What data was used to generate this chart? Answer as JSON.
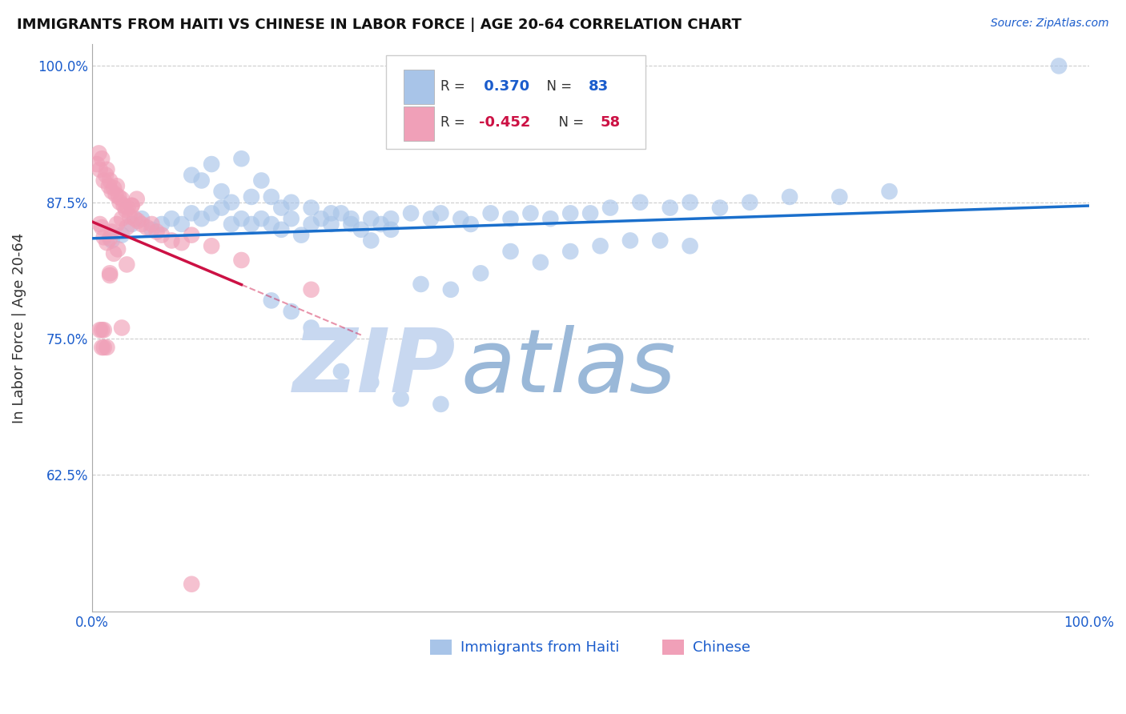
{
  "title": "IMMIGRANTS FROM HAITI VS CHINESE IN LABOR FORCE | AGE 20-64 CORRELATION CHART",
  "source": "Source: ZipAtlas.com",
  "ylabel": "In Labor Force | Age 20-64",
  "xlim": [
    0.0,
    1.0
  ],
  "ylim": [
    0.5,
    1.02
  ],
  "xtick_positions": [
    0.0,
    0.2,
    0.4,
    0.6,
    0.8,
    1.0
  ],
  "xticklabels": [
    "0.0%",
    "",
    "",
    "",
    "",
    "100.0%"
  ],
  "ytick_positions": [
    0.625,
    0.75,
    0.875,
    1.0
  ],
  "ytick_labels": [
    "62.5%",
    "75.0%",
    "87.5%",
    "100.0%"
  ],
  "haiti_color": "#a8c4e8",
  "haiti_line_color": "#1a6fcc",
  "chinese_color": "#f0a0b8",
  "chinese_line_color": "#cc1144",
  "watermark_zip_color": "#c8d8f0",
  "watermark_atlas_color": "#9ab8d8",
  "haiti_scatter_x": [
    0.02,
    0.03,
    0.04,
    0.05,
    0.06,
    0.07,
    0.08,
    0.09,
    0.1,
    0.11,
    0.12,
    0.13,
    0.14,
    0.15,
    0.16,
    0.17,
    0.18,
    0.19,
    0.2,
    0.21,
    0.22,
    0.23,
    0.24,
    0.25,
    0.26,
    0.27,
    0.28,
    0.29,
    0.3,
    0.32,
    0.34,
    0.35,
    0.37,
    0.38,
    0.4,
    0.42,
    0.44,
    0.46,
    0.48,
    0.5,
    0.52,
    0.55,
    0.58,
    0.6,
    0.63,
    0.66,
    0.7,
    0.75,
    0.8,
    0.97,
    0.1,
    0.11,
    0.12,
    0.13,
    0.14,
    0.15,
    0.16,
    0.17,
    0.18,
    0.19,
    0.2,
    0.22,
    0.24,
    0.26,
    0.28,
    0.3,
    0.33,
    0.36,
    0.39,
    0.42,
    0.45,
    0.48,
    0.51,
    0.54,
    0.57,
    0.6,
    0.18,
    0.2,
    0.22,
    0.25,
    0.28,
    0.31,
    0.35
  ],
  "haiti_scatter_y": [
    0.84,
    0.845,
    0.855,
    0.86,
    0.85,
    0.855,
    0.86,
    0.855,
    0.865,
    0.86,
    0.865,
    0.87,
    0.855,
    0.86,
    0.855,
    0.86,
    0.855,
    0.85,
    0.86,
    0.845,
    0.855,
    0.86,
    0.855,
    0.865,
    0.855,
    0.85,
    0.86,
    0.855,
    0.86,
    0.865,
    0.86,
    0.865,
    0.86,
    0.855,
    0.865,
    0.86,
    0.865,
    0.86,
    0.865,
    0.865,
    0.87,
    0.875,
    0.87,
    0.875,
    0.87,
    0.875,
    0.88,
    0.88,
    0.885,
    1.0,
    0.9,
    0.895,
    0.91,
    0.885,
    0.875,
    0.915,
    0.88,
    0.895,
    0.88,
    0.87,
    0.875,
    0.87,
    0.865,
    0.86,
    0.84,
    0.85,
    0.8,
    0.795,
    0.81,
    0.83,
    0.82,
    0.83,
    0.835,
    0.84,
    0.84,
    0.835,
    0.785,
    0.775,
    0.76,
    0.72,
    0.71,
    0.695,
    0.69
  ],
  "chinese_scatter_x": [
    0.005,
    0.007,
    0.008,
    0.01,
    0.012,
    0.014,
    0.015,
    0.017,
    0.018,
    0.02,
    0.022,
    0.024,
    0.025,
    0.027,
    0.028,
    0.03,
    0.032,
    0.034,
    0.036,
    0.038,
    0.04,
    0.043,
    0.046,
    0.05,
    0.055,
    0.06,
    0.065,
    0.07,
    0.08,
    0.09,
    0.1,
    0.12,
    0.15,
    0.1,
    0.008,
    0.01,
    0.012,
    0.015,
    0.018,
    0.02,
    0.025,
    0.03,
    0.035,
    0.04,
    0.045,
    0.012,
    0.015,
    0.018,
    0.022,
    0.026,
    0.03,
    0.035,
    0.01,
    0.012,
    0.018,
    0.22,
    0.008,
    0.01
  ],
  "chinese_scatter_y": [
    0.91,
    0.92,
    0.905,
    0.915,
    0.895,
    0.9,
    0.905,
    0.89,
    0.895,
    0.885,
    0.888,
    0.882,
    0.89,
    0.88,
    0.875,
    0.878,
    0.872,
    0.868,
    0.87,
    0.862,
    0.872,
    0.86,
    0.858,
    0.855,
    0.852,
    0.855,
    0.848,
    0.845,
    0.84,
    0.838,
    0.845,
    0.835,
    0.822,
    0.525,
    0.855,
    0.852,
    0.843,
    0.838,
    0.842,
    0.848,
    0.855,
    0.86,
    0.852,
    0.872,
    0.878,
    0.758,
    0.742,
    0.81,
    0.828,
    0.832,
    0.76,
    0.818,
    0.758,
    0.742,
    0.808,
    0.795,
    0.758,
    0.742
  ]
}
